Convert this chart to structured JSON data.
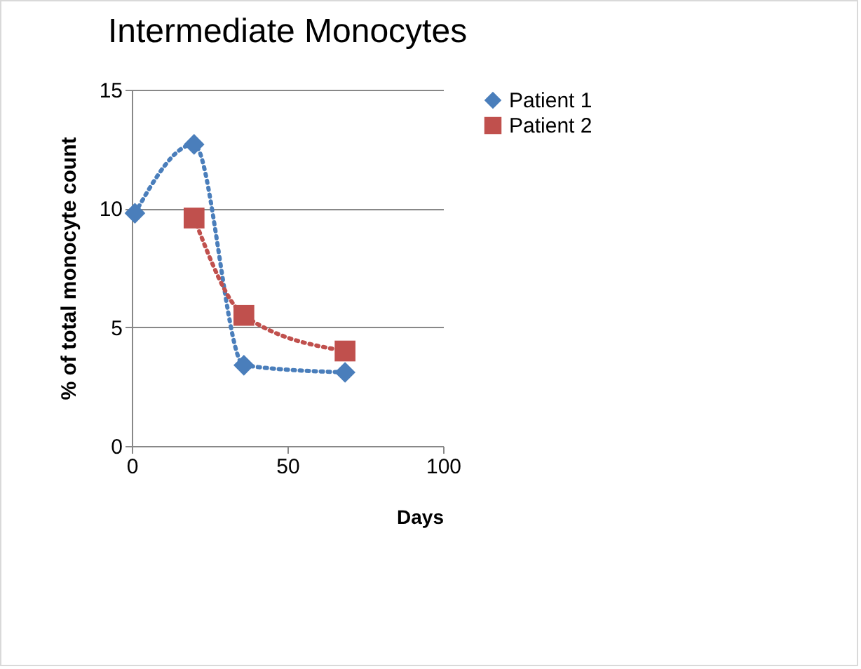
{
  "chart_data": {
    "type": "line",
    "title": "Intermediate Monocytes",
    "xlabel": "Days",
    "ylabel": "% of total monocyte count",
    "xlim": [
      0,
      100
    ],
    "xticks": [
      0,
      50,
      100
    ],
    "ylim": [
      0,
      15
    ],
    "yticks": [
      0,
      5,
      10,
      15
    ],
    "grid": "y",
    "legend": "right",
    "line_style": "dotted",
    "series": [
      {
        "name": "Patient 1",
        "color": "#4a7ebb",
        "marker": "diamond",
        "x": [
          1,
          20,
          36,
          68.5
        ],
        "values": [
          9.8,
          12.7,
          3.4,
          3.1
        ]
      },
      {
        "name": "Patient 2",
        "color": "#c0504d",
        "marker": "square",
        "x": [
          20,
          36,
          68.5
        ],
        "values": [
          9.6,
          5.5,
          4.0
        ]
      }
    ]
  }
}
